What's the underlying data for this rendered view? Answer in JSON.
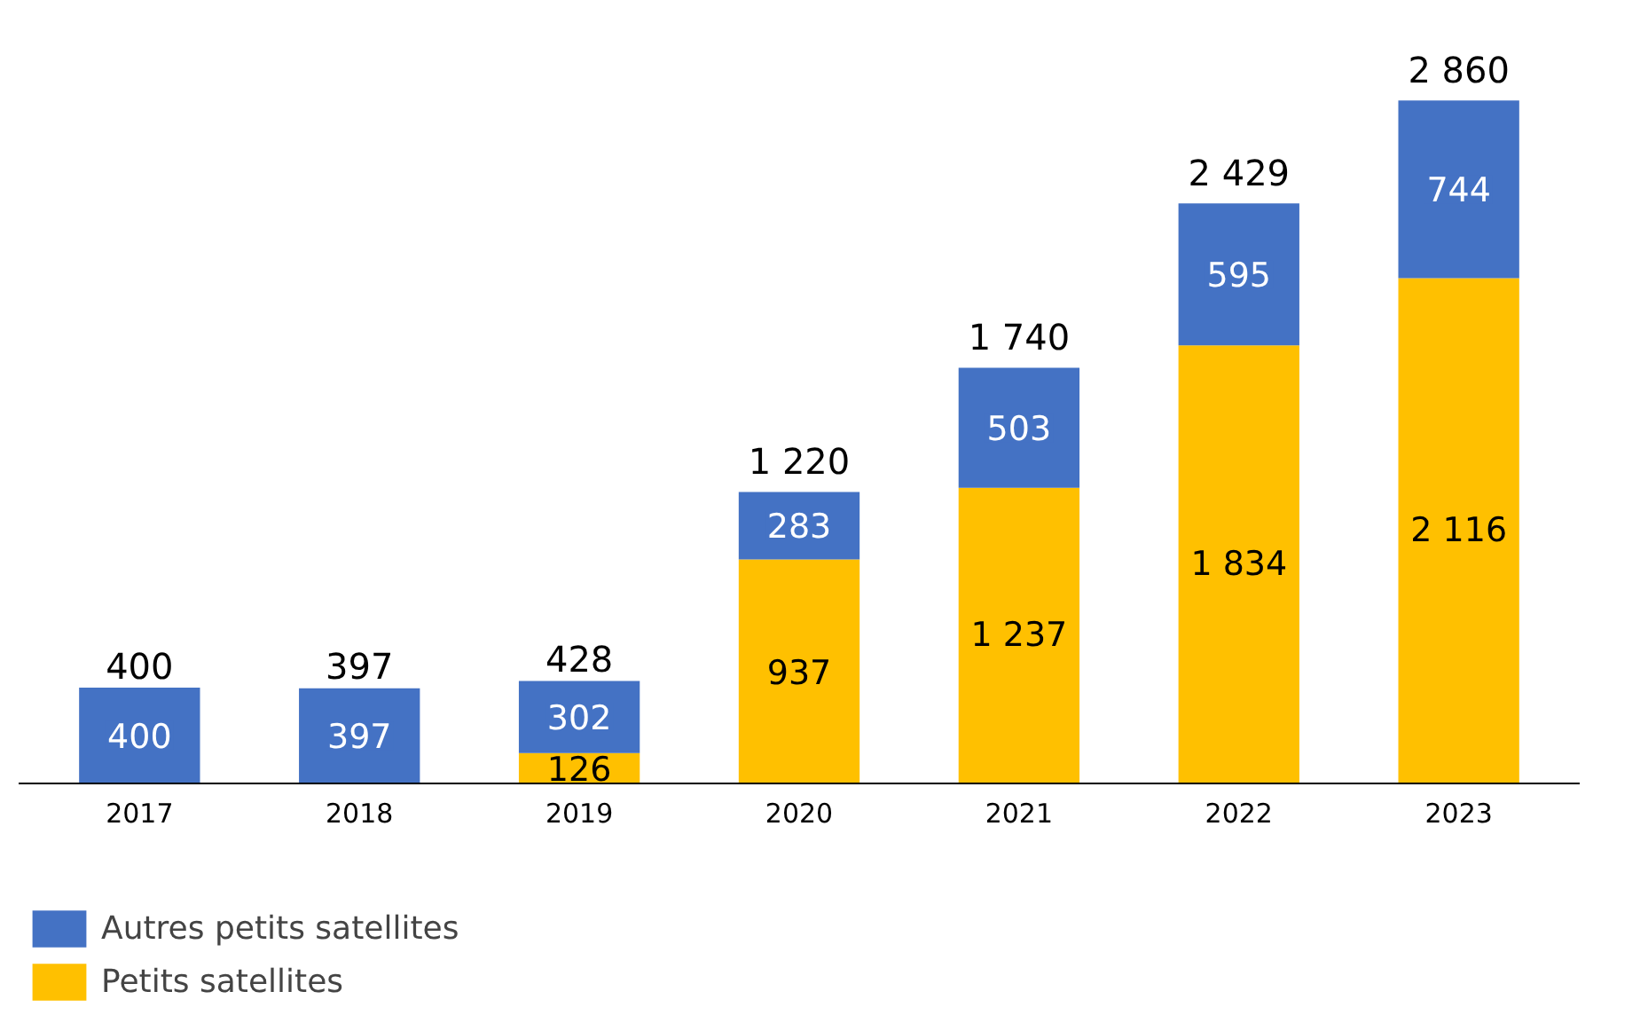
{
  "chart_data": {
    "type": "bar",
    "stacked": true,
    "data_labels": true,
    "legend": "bottom left",
    "tick_labels": "x",
    "categories": [
      "2017",
      "2018",
      "2019",
      "2020",
      "2021",
      "2022",
      "2023"
    ],
    "series": [
      {
        "name": "Petits satellites",
        "color": "#ffc000",
        "values": [
          null,
          null,
          126,
          937,
          1237,
          1834,
          2116
        ],
        "value_labels": [
          null,
          null,
          "126",
          "937",
          "1 237",
          "1 834",
          "2 116"
        ]
      },
      {
        "name": "Autres petits satellites",
        "color": "#4472c4",
        "values": [
          400,
          397,
          302,
          283,
          503,
          595,
          744
        ],
        "value_labels": [
          "400",
          "397",
          "302",
          "283",
          "503",
          "595",
          "744"
        ]
      }
    ],
    "totals": [
      "400",
      "397",
      "428",
      "1 220",
      "1 740",
      "2 429",
      "2 860"
    ]
  }
}
